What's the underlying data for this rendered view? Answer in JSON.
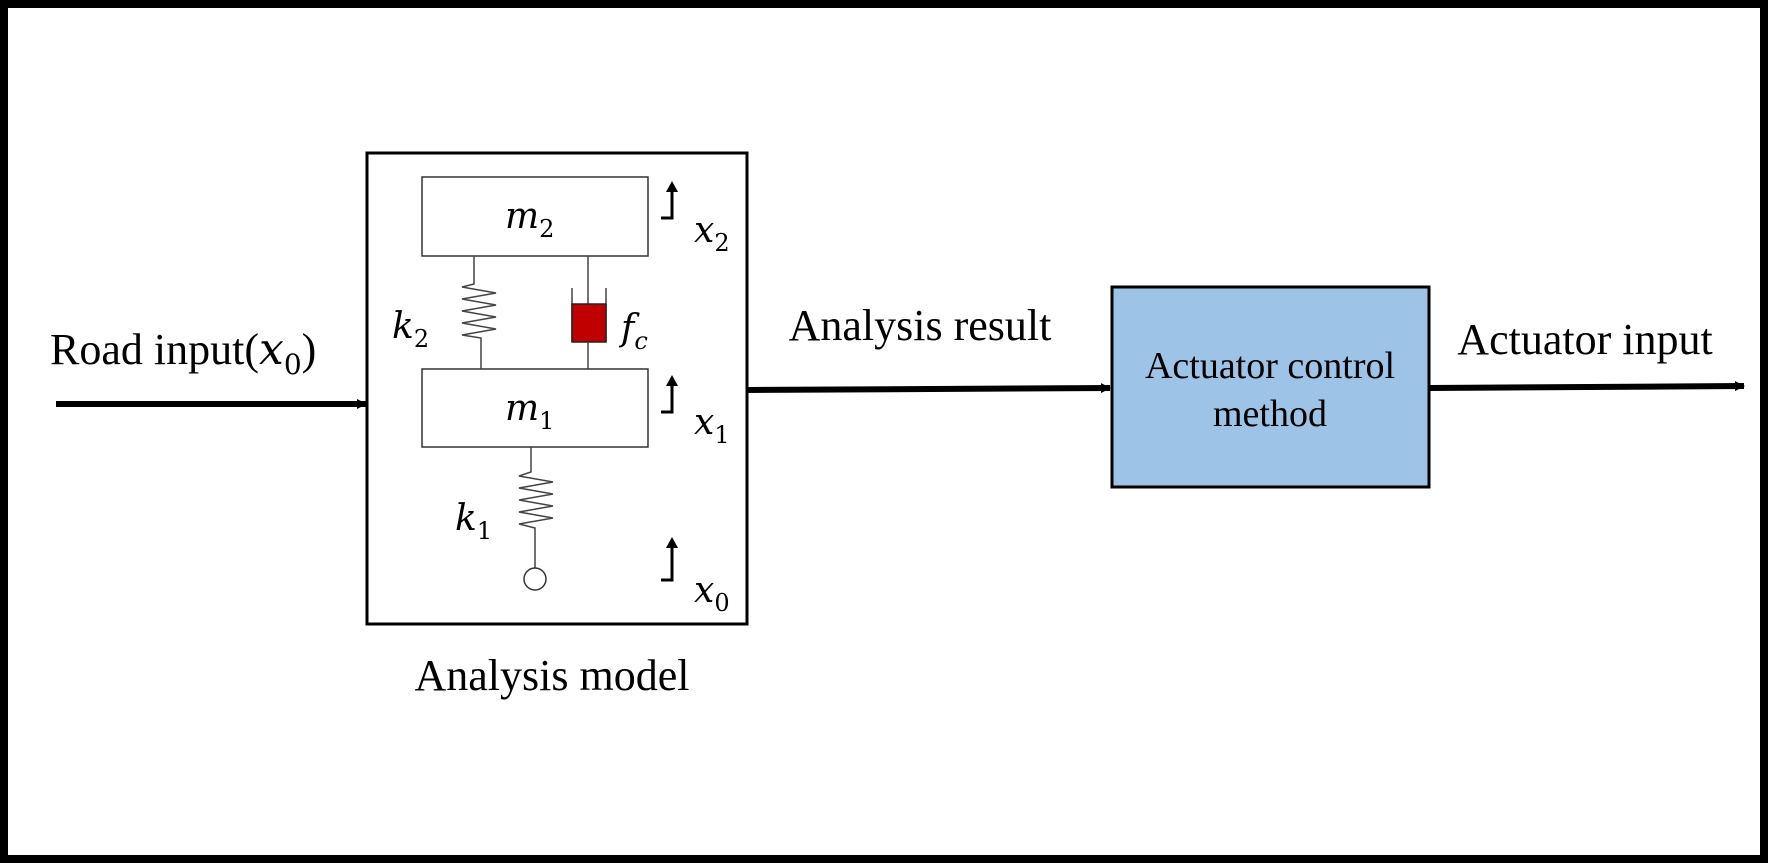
{
  "labels": {
    "road_input_prefix": "Road input(",
    "road_input_var": "x",
    "road_input_sub": "0",
    "road_input_suffix": ")",
    "analysis_result": "Analysis result",
    "actuator_input": "Actuator input",
    "analysis_model": "Analysis model",
    "control_line1": "Actuator control",
    "control_line2": "method"
  },
  "model": {
    "m2_var": "m",
    "m2_sub": "2",
    "m1_var": "m",
    "m1_sub": "1",
    "k2_var": "k",
    "k2_sub": "2",
    "k1_var": "k",
    "k1_sub": "1",
    "fc_var": "f",
    "fc_sub": "c",
    "x2_var": "x",
    "x2_sub": "2",
    "x1_var": "x",
    "x1_sub": "1",
    "x0_var": "x",
    "x0_sub": "0"
  },
  "colors": {
    "frame": "#000000",
    "control_block_fill": "#9dc3e6",
    "damper_fill": "#c00000"
  }
}
